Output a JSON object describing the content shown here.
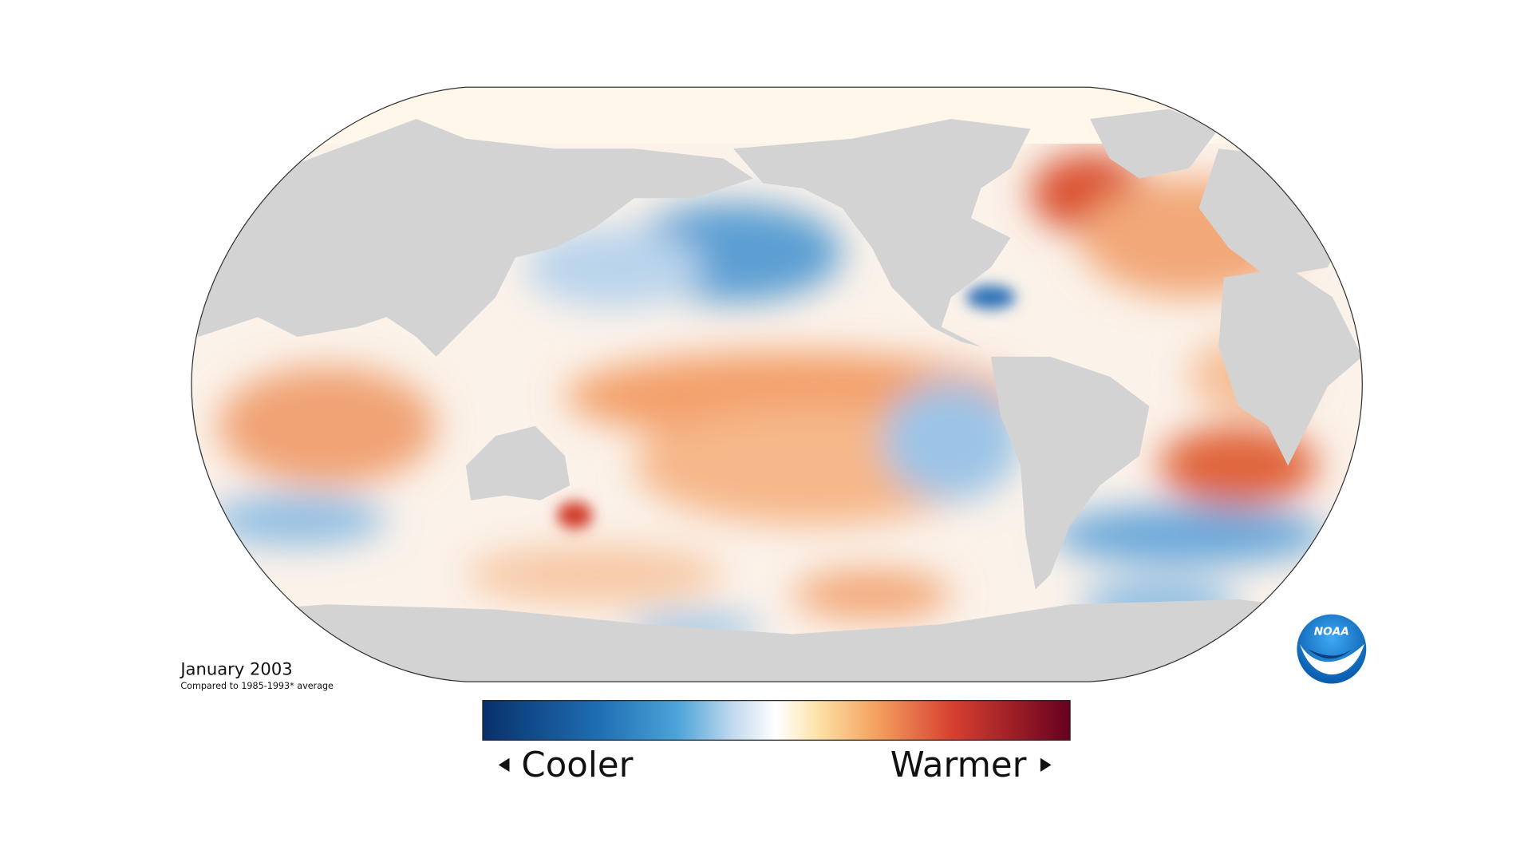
{
  "map": {
    "title": "January 2003",
    "subtitle": "Compared to 1985-1993* average",
    "legend": {
      "low": "Cooler",
      "high": "Warmer"
    },
    "logo": "NOAA"
  }
}
